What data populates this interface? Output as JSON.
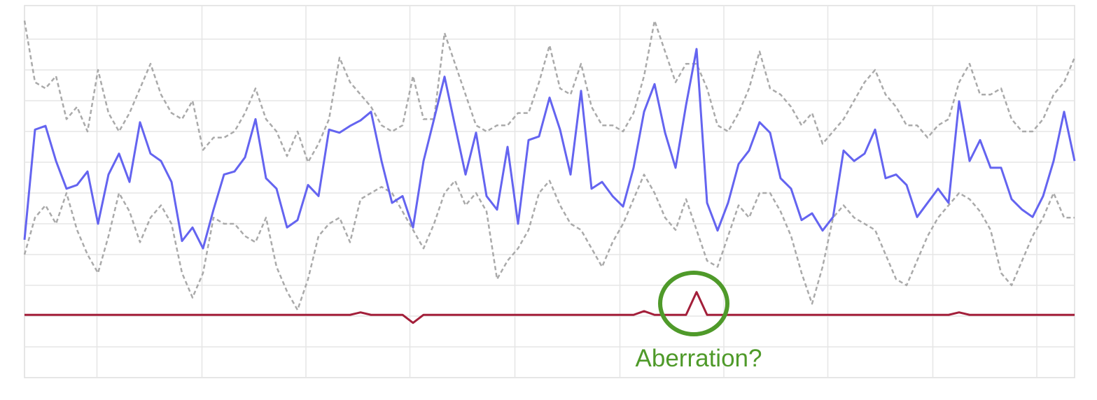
{
  "chart_data": {
    "type": "line",
    "annotation": "Aberration?",
    "xlim": [
      0,
      100
    ],
    "ylim": [
      0,
      6
    ],
    "xticks": [
      6.9,
      16.9,
      26.8,
      36.7,
      46.7,
      56.7,
      66.6,
      76.5,
      86.5,
      96.4
    ],
    "yticks": [
      0.5,
      1,
      1.5,
      2,
      2.5,
      3,
      3.5,
      4,
      4.5,
      5,
      5.5
    ],
    "grid": true,
    "x": [
      0,
      1,
      2,
      3,
      4,
      5,
      6,
      7,
      8,
      9,
      10,
      11,
      12,
      13,
      14,
      15,
      16,
      17,
      18,
      19,
      20,
      21,
      22,
      23,
      24,
      25,
      26,
      27,
      28,
      29,
      30,
      31,
      32,
      33,
      34,
      35,
      36,
      37,
      38,
      39,
      40,
      41,
      42,
      43,
      44,
      45,
      46,
      47,
      48,
      49,
      50,
      51,
      52,
      53,
      54,
      55,
      56,
      57,
      58,
      59,
      60,
      61,
      62,
      63,
      64,
      65,
      66,
      67,
      68,
      69,
      70,
      71,
      72,
      73,
      74,
      75,
      76,
      77,
      78,
      79,
      80,
      81,
      82,
      83,
      84,
      85,
      86,
      87,
      88,
      89,
      90,
      91,
      92,
      93,
      94,
      95,
      96,
      97,
      98,
      99,
      100
    ],
    "series": [
      {
        "color": "#aaaaaa",
        "dashed": true,
        "values": [
          5.8,
          4.8,
          4.7,
          4.9,
          4.2,
          4.4,
          4.0,
          5.0,
          4.3,
          4.0,
          4.3,
          4.7,
          5.1,
          4.6,
          4.3,
          4.2,
          4.5,
          3.7,
          3.9,
          3.9,
          4.0,
          4.3,
          4.7,
          4.2,
          4.0,
          3.6,
          4.0,
          3.5,
          3.8,
          4.2,
          5.2,
          4.8,
          4.6,
          4.4,
          4.1,
          4.0,
          4.1,
          4.9,
          4.2,
          4.2,
          5.6,
          5.1,
          4.6,
          4.1,
          4.0,
          4.1,
          4.1,
          4.3,
          4.3,
          4.8,
          5.4,
          4.7,
          4.6,
          5.1,
          4.4,
          4.1,
          4.1,
          4.0,
          4.3,
          4.9,
          5.8,
          5.3,
          4.8,
          5.1,
          5.1,
          4.7,
          4.1,
          4.0,
          4.3,
          4.7,
          5.3,
          4.7,
          4.6,
          4.4,
          4.1,
          4.3,
          3.8,
          4.0,
          4.2,
          4.5,
          4.8,
          5.0,
          4.6,
          4.4,
          4.1,
          4.1,
          3.9,
          4.1,
          4.2,
          4.8,
          5.1,
          4.6,
          4.6,
          4.7,
          4.2,
          4.0,
          4.0,
          4.2,
          4.6,
          4.8,
          5.2
        ]
      },
      {
        "color": "#aaaaaa",
        "dashed": true,
        "values": [
          2.0,
          2.6,
          2.8,
          2.5,
          3.0,
          2.4,
          2.0,
          1.7,
          2.3,
          3.0,
          2.7,
          2.2,
          2.6,
          2.8,
          2.5,
          1.7,
          1.3,
          1.7,
          2.6,
          2.5,
          2.5,
          2.3,
          2.2,
          2.6,
          1.8,
          1.4,
          1.1,
          1.6,
          2.3,
          2.5,
          2.6,
          2.2,
          2.9,
          3.0,
          3.1,
          3.0,
          2.7,
          2.4,
          2.1,
          2.5,
          3.0,
          3.2,
          2.8,
          3.0,
          2.7,
          1.6,
          1.9,
          2.1,
          2.4,
          3.0,
          3.2,
          2.8,
          2.5,
          2.4,
          2.1,
          1.8,
          2.2,
          2.5,
          2.9,
          3.3,
          3.0,
          2.6,
          2.4,
          2.9,
          2.4,
          1.9,
          1.8,
          2.3,
          2.8,
          2.6,
          3.0,
          3.0,
          2.7,
          2.3,
          1.7,
          1.2,
          1.8,
          2.6,
          2.8,
          2.6,
          2.5,
          2.4,
          2.0,
          1.6,
          1.5,
          1.9,
          2.3,
          2.6,
          2.8,
          3.0,
          2.9,
          2.7,
          2.4,
          1.7,
          1.5,
          1.9,
          2.3,
          2.6,
          3.0,
          2.6,
          2.6
        ]
      },
      {
        "color": "#6464f0",
        "dashed": false,
        "values": [
          2.24,
          4.03,
          4.09,
          3.52,
          3.07,
          3.13,
          3.35,
          2.5,
          3.3,
          3.64,
          3.18,
          4.15,
          3.64,
          3.52,
          3.18,
          2.22,
          2.44,
          2.1,
          2.73,
          3.3,
          3.35,
          3.58,
          4.2,
          3.24,
          3.07,
          2.44,
          2.56,
          3.13,
          2.95,
          4.03,
          3.98,
          4.09,
          4.18,
          4.32,
          3.52,
          2.84,
          2.95,
          2.44,
          3.52,
          4.2,
          4.89,
          4.09,
          3.3,
          3.98,
          2.95,
          2.73,
          3.75,
          2.5,
          3.86,
          3.92,
          4.55,
          4.03,
          3.3,
          4.66,
          3.07,
          3.18,
          2.95,
          2.78,
          3.41,
          4.32,
          4.77,
          3.98,
          3.41,
          4.43,
          5.34,
          2.84,
          2.39,
          2.84,
          3.47,
          3.69,
          4.15,
          3.98,
          3.24,
          3.07,
          2.56,
          2.67,
          2.39,
          2.61,
          3.69,
          3.52,
          3.64,
          4.03,
          3.24,
          3.3,
          3.13,
          2.61,
          2.84,
          3.07,
          2.84,
          4.49,
          3.52,
          3.86,
          3.41,
          3.41,
          2.9,
          2.73,
          2.61,
          2.95,
          3.52,
          4.32,
          3.52
        ]
      },
      {
        "color": "#a31f3a",
        "dashed": false,
        "values": [
          1.02,
          1.02,
          1.02,
          1.02,
          1.02,
          1.02,
          1.02,
          1.02,
          1.02,
          1.02,
          1.02,
          1.02,
          1.02,
          1.02,
          1.02,
          1.02,
          1.02,
          1.02,
          1.02,
          1.02,
          1.02,
          1.02,
          1.02,
          1.02,
          1.02,
          1.02,
          1.02,
          1.02,
          1.02,
          1.02,
          1.02,
          1.02,
          1.06,
          1.02,
          1.02,
          1.02,
          1.02,
          0.89,
          1.02,
          1.02,
          1.02,
          1.02,
          1.02,
          1.02,
          1.02,
          1.02,
          1.02,
          1.02,
          1.02,
          1.02,
          1.02,
          1.02,
          1.02,
          1.02,
          1.02,
          1.02,
          1.02,
          1.02,
          1.02,
          1.08,
          1.02,
          1.02,
          1.02,
          1.02,
          1.39,
          1.02,
          1.02,
          1.02,
          1.02,
          1.02,
          1.02,
          1.02,
          1.02,
          1.02,
          1.02,
          1.02,
          1.02,
          1.02,
          1.02,
          1.02,
          1.02,
          1.02,
          1.02,
          1.02,
          1.02,
          1.02,
          1.02,
          1.02,
          1.02,
          1.06,
          1.02,
          1.02,
          1.02,
          1.02,
          1.02,
          1.02,
          1.02,
          1.02,
          1.02,
          1.02,
          1.02
        ]
      }
    ]
  }
}
